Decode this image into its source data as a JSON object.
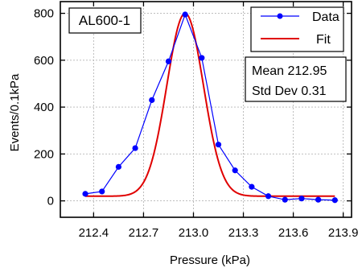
{
  "chart_data": {
    "type": "line",
    "title_box": "AL600-1",
    "xlabel": "Pressure (kPa)",
    "ylabel": "Events/0.1kPa",
    "xlim": [
      212.2,
      213.95
    ],
    "ylim": [
      -70,
      850
    ],
    "xticks": [
      212.4,
      212.7,
      213.0,
      213.3,
      213.6,
      213.9
    ],
    "xtick_labels": [
      "212.4",
      "212.7",
      "213.0",
      "213.3",
      "213.6",
      "213.9"
    ],
    "yticks": [
      0,
      200,
      400,
      600,
      800
    ],
    "ytick_labels": [
      "0",
      "200",
      "400",
      "600",
      "800"
    ],
    "grid": true,
    "legend_position": "top-right",
    "series": [
      {
        "name": "Data",
        "color": "#0000ff",
        "marker": "circle",
        "x": [
          212.35,
          212.45,
          212.55,
          212.65,
          212.75,
          212.85,
          212.95,
          213.05,
          213.15,
          213.25,
          213.35,
          213.45,
          213.55,
          213.65,
          213.75,
          213.85
        ],
        "y": [
          30,
          40,
          145,
          225,
          430,
          595,
          795,
          610,
          240,
          130,
          60,
          20,
          5,
          10,
          5,
          3
        ]
      },
      {
        "name": "Fit",
        "color": "#e00000",
        "type": "gaussian",
        "mean": 212.95,
        "sigma": 0.11,
        "amplitude": 780,
        "baseline": 20,
        "x_range": [
          212.35,
          213.85
        ]
      }
    ],
    "stats_box": {
      "line1": "Mean 212.95",
      "line2": "Std Dev 0.31"
    }
  }
}
